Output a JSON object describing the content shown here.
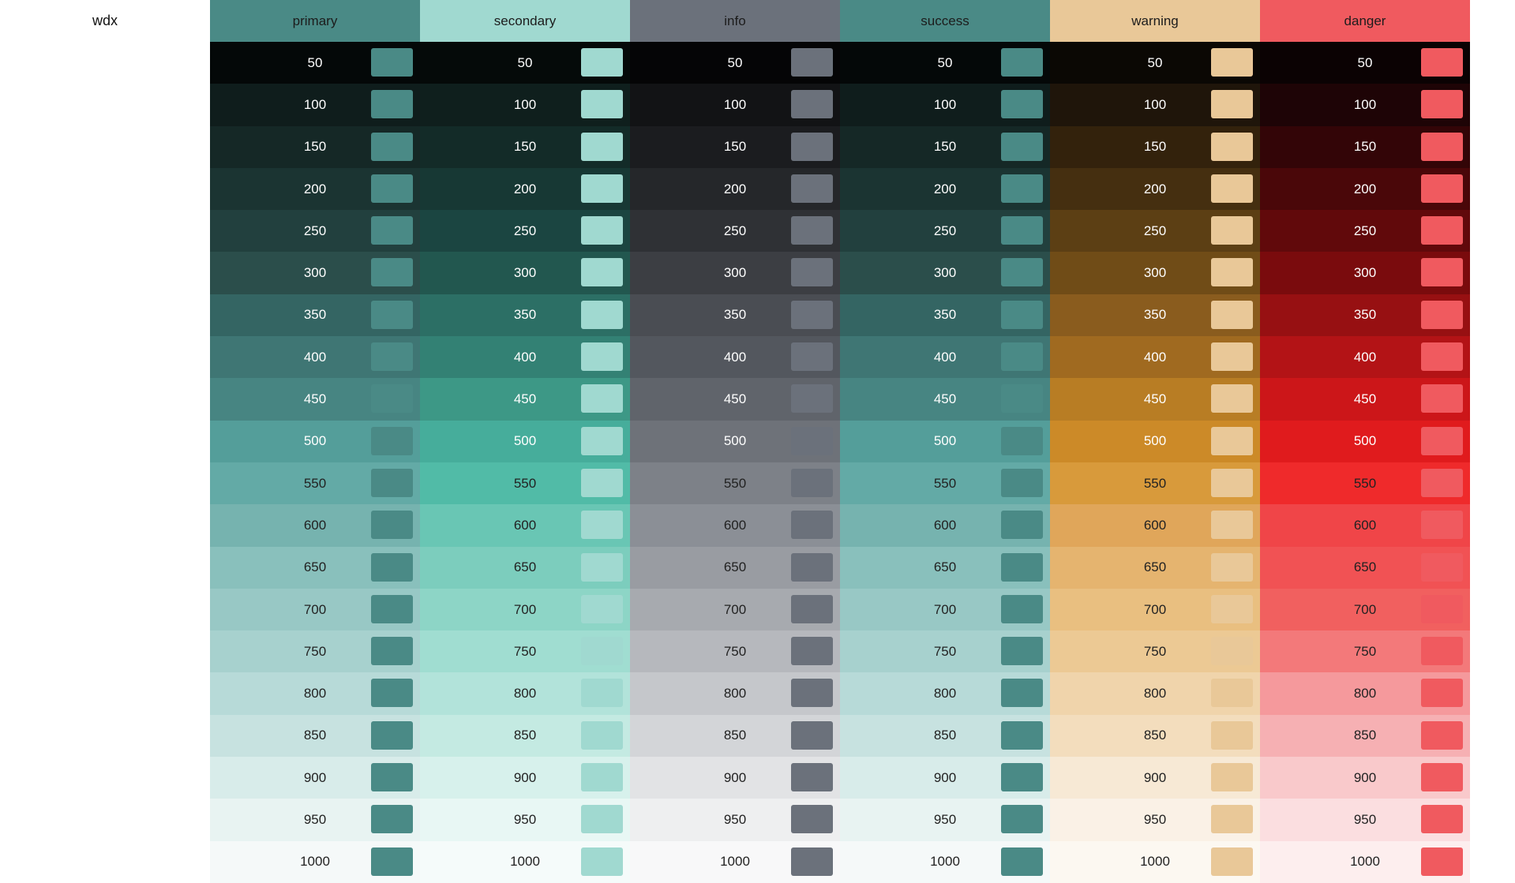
{
  "brand": "wdx",
  "palettes": [
    {
      "name": "primary",
      "base": "#4a8a86",
      "shades": [
        "#040808",
        "#0f1d1c",
        "#152826",
        "#1b3432",
        "#22403e",
        "#2b4e4b",
        "#346563",
        "#3f7674",
        "#478582",
        "#549e9a",
        "#63aaa6",
        "#76b3af",
        "#89c0bc",
        "#98c8c5",
        "#a7d1ce",
        "#b7dad8",
        "#c7e2e0",
        "#d8ecea",
        "#e8f3f2",
        "#f5f9f9"
      ]
    },
    {
      "name": "secondary",
      "base": "#a0d9d0",
      "shades": [
        "#050a09",
        "#0f1f1d",
        "#132b28",
        "#173834",
        "#1b4541",
        "#22574f",
        "#2c6f65",
        "#338174",
        "#3d9886",
        "#46ad9b",
        "#51bba7",
        "#69c6b4",
        "#7ccdbd",
        "#8dd5c6",
        "#a0ddd1",
        "#b2e3da",
        "#c4eae2",
        "#d7f1ec",
        "#e8f7f4",
        "#f5fbfa"
      ]
    },
    {
      "name": "info",
      "base": "#6b717b",
      "shades": [
        "#050506",
        "#121315",
        "#1b1c1f",
        "#25272a",
        "#2f3135",
        "#3c3e43",
        "#4a4d53",
        "#53575e",
        "#60646b",
        "#6e7279",
        "#7d8188",
        "#8b8f96",
        "#999ca2",
        "#a7aaaf",
        "#b6b8bd",
        "#c5c7cb",
        "#d3d5d8",
        "#e2e3e5",
        "#eeeff0",
        "#f8f8f9"
      ]
    },
    {
      "name": "success",
      "base": "#4a8a86",
      "shades": [
        "#040808",
        "#0f1d1c",
        "#152826",
        "#1b3432",
        "#22403e",
        "#2b4e4b",
        "#346563",
        "#3f7674",
        "#478582",
        "#549e9a",
        "#63aaa6",
        "#76b3af",
        "#89c0bc",
        "#98c8c5",
        "#a7d1ce",
        "#b7dad8",
        "#c7e2e0",
        "#d8ecea",
        "#e8f3f2",
        "#f5f9f9"
      ]
    },
    {
      "name": "warning",
      "base": "#e9c898",
      "shades": [
        "#0b0804",
        "#1f150a",
        "#33220c",
        "#452f10",
        "#5c3f14",
        "#704c17",
        "#8a5c1e",
        "#a06a20",
        "#b87d24",
        "#cc8a28",
        "#d89a3b",
        "#e0a65a",
        "#e5b46f",
        "#e9bf80",
        "#ecc994",
        "#f0d4ab",
        "#f3ddbd",
        "#f7e9d5",
        "#faf1e6",
        "#fcf8f1"
      ]
    },
    {
      "name": "danger",
      "base": "#f05a5f",
      "shades": [
        "#0b0203",
        "#1e0406",
        "#330507",
        "#4a0709",
        "#61090b",
        "#7a0b0d",
        "#971012",
        "#b31316",
        "#cc1619",
        "#e01b1d",
        "#ef2a2b",
        "#f04548",
        "#f15254",
        "#f1605f",
        "#f3797a",
        "#f5999c",
        "#f6b0b3",
        "#f9c9cb",
        "#fbdee0",
        "#fdeeee"
      ]
    }
  ],
  "shade_labels": [
    "50",
    "100",
    "150",
    "200",
    "250",
    "300",
    "350",
    "400",
    "450",
    "500",
    "550",
    "600",
    "650",
    "700",
    "750",
    "800",
    "850",
    "900",
    "950",
    "1000"
  ],
  "light_text_rows": 10
}
